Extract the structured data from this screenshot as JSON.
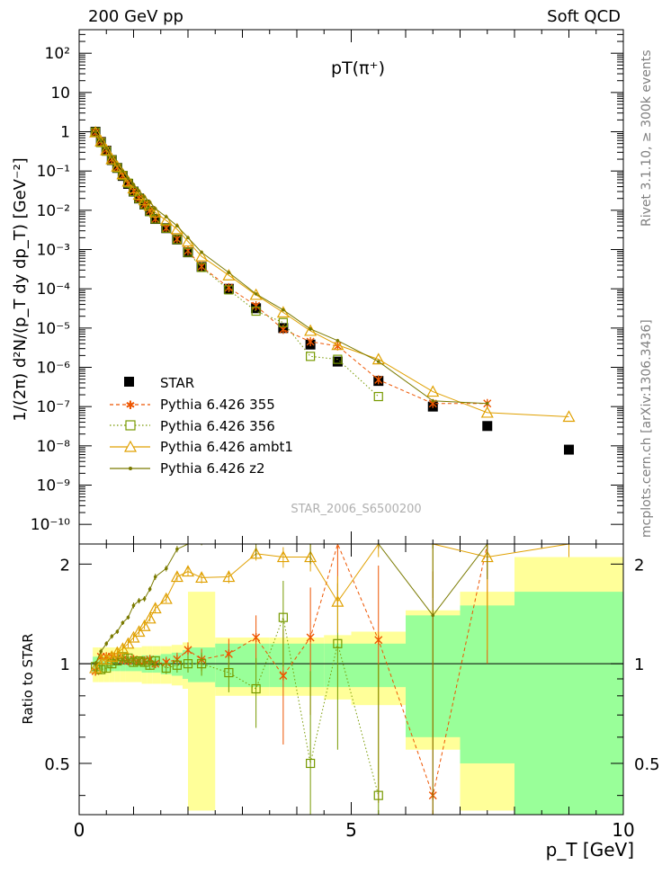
{
  "header": {
    "left": "200 GeV pp",
    "right": "Soft QCD",
    "title": "pT(π⁺)",
    "watermark": "STAR_2006_S6500200",
    "side_top": "Rivet 3.1.10, ≥ 300k events",
    "side_bottom": "mcplots.cern.ch [arXiv:1306.3436]"
  },
  "axes": {
    "ylabel_main": "1/(2π) d²N/(p_T dy dp_T) [GeV⁻²]",
    "ylabel_ratio": "Ratio to STAR",
    "xlabel": "p_T [GeV]",
    "x_ticks": [
      "0",
      "5",
      "10"
    ],
    "y_main_ticks": [
      "10²",
      "10",
      "1",
      "10⁻¹",
      "10⁻²",
      "10⁻³",
      "10⁻⁴",
      "10⁻⁵",
      "10⁻⁶",
      "10⁻⁷",
      "10⁻⁸",
      "10⁻⁹",
      "10⁻¹⁰"
    ],
    "y_ratio_ticks": [
      "2",
      "1",
      "0.5"
    ]
  },
  "legend": {
    "data": "STAR",
    "s355": "Pythia 6.426 355",
    "s356": "Pythia 6.426 356",
    "ambt1": "Pythia 6.426 ambt1",
    "z2": "Pythia 6.426 z2"
  },
  "colors": {
    "data": "#000000",
    "s355": "#ee5500",
    "s356": "#779900",
    "ambt1": "#e0a000",
    "z2": "#7a7a00",
    "band_outer": "#ffff99",
    "band_inner": "#99ff99"
  },
  "chart_data": {
    "type": "scatter",
    "title": "pT(π⁺)",
    "xlabel": "p_T [GeV]",
    "ylabel": "1/(2π) d²N/(p_T dy dp_T) [GeV⁻²]",
    "xlim": [
      0,
      10
    ],
    "ylim_log10": [
      -10.5,
      2.6
    ],
    "ratio_ylim": [
      0.35,
      2.3
    ],
    "x": [
      0.3,
      0.4,
      0.5,
      0.6,
      0.7,
      0.8,
      0.9,
      1.0,
      1.1,
      1.2,
      1.3,
      1.4,
      1.6,
      1.8,
      2.0,
      2.25,
      2.75,
      3.25,
      3.75,
      4.25,
      4.75,
      5.5,
      6.5,
      7.5,
      9.0
    ],
    "bins": [
      [
        0.25,
        0.35
      ],
      [
        0.35,
        0.45
      ],
      [
        0.45,
        0.55
      ],
      [
        0.55,
        0.65
      ],
      [
        0.65,
        0.75
      ],
      [
        0.75,
        0.85
      ],
      [
        0.85,
        0.95
      ],
      [
        0.95,
        1.05
      ],
      [
        1.05,
        1.15
      ],
      [
        1.15,
        1.25
      ],
      [
        1.25,
        1.35
      ],
      [
        1.35,
        1.5
      ],
      [
        1.5,
        1.7
      ],
      [
        1.7,
        1.9
      ],
      [
        1.9,
        2.0
      ],
      [
        2.0,
        2.5
      ],
      [
        2.5,
        3.0
      ],
      [
        3.0,
        3.5
      ],
      [
        3.5,
        4.0
      ],
      [
        4.0,
        4.5
      ],
      [
        4.5,
        5.0
      ],
      [
        5.0,
        6.0
      ],
      [
        6.0,
        7.0
      ],
      [
        7.0,
        8.0
      ],
      [
        8.0,
        10.0
      ]
    ],
    "ratio_band_outer": [
      0.12,
      0.12,
      0.12,
      0.12,
      0.12,
      0.12,
      0.12,
      0.12,
      0.12,
      0.13,
      0.13,
      0.13,
      0.13,
      0.14,
      0.16,
      0.65,
      0.2,
      0.2,
      0.2,
      0.2,
      0.22,
      0.25,
      0.45,
      0.65,
      1.1
    ],
    "ratio_band_inner": [
      0.05,
      0.05,
      0.05,
      0.05,
      0.05,
      0.05,
      0.05,
      0.05,
      0.05,
      0.06,
      0.06,
      0.06,
      0.07,
      0.08,
      0.1,
      0.12,
      0.15,
      0.15,
      0.15,
      0.15,
      0.15,
      0.15,
      0.4,
      0.5,
      0.65
    ],
    "series": [
      {
        "key": "data",
        "name": "STAR",
        "marker": "filled-square",
        "values": [
          1.0,
          0.55,
          0.33,
          0.19,
          0.12,
          0.075,
          0.047,
          0.03,
          0.02,
          0.014,
          0.0095,
          0.006,
          0.0035,
          0.0018,
          0.00085,
          0.00036,
          0.0001,
          3.2e-05,
          1e-05,
          3.8e-06,
          1.4e-06,
          4.5e-07,
          1e-07,
          3.2e-08,
          8e-09
        ]
      },
      {
        "key": "s355",
        "name": "Pythia 6.426 355",
        "marker": "star",
        "style": "dashed",
        "values": [
          0.95,
          0.58,
          0.35,
          0.2,
          0.125,
          0.077,
          0.048,
          0.031,
          0.02,
          0.014,
          0.0098,
          0.006,
          0.0035,
          0.00185,
          0.00093,
          0.00037,
          0.000107,
          3.7e-05,
          9.2e-06,
          4.5e-06,
          3.5e-06,
          4.8e-07,
          1.2e-07,
          1.2e-07
        ],
        "ratio": [
          0.95,
          1.05,
          1.05,
          1.05,
          1.04,
          1.03,
          1.02,
          1.03,
          1.02,
          1.02,
          1.03,
          1.0,
          1.01,
          1.03,
          1.1,
          1.03,
          1.07,
          1.2,
          0.92,
          1.2,
          2.5,
          1.18,
          0.4,
          4.0
        ],
        "ratio_err": [
          0.03,
          0.03,
          0.03,
          0.03,
          0.03,
          0.03,
          0.03,
          0.03,
          0.03,
          0.03,
          0.03,
          0.03,
          0.04,
          0.05,
          0.06,
          0.08,
          0.12,
          0.2,
          0.35,
          0.5,
          1.0,
          0.8,
          1.5,
          3.0
        ]
      },
      {
        "key": "s356",
        "name": "Pythia 6.426 356",
        "marker": "open-square",
        "style": "dotted",
        "values": [
          0.98,
          0.53,
          0.32,
          0.19,
          0.12,
          0.077,
          0.049,
          0.03,
          0.02,
          0.014,
          0.0093,
          0.006,
          0.0035,
          0.0018,
          0.00085,
          0.00035,
          9.4e-05,
          2.7e-05,
          1.38e-05,
          1.9e-06,
          1.6e-06,
          1.8e-07
        ],
        "ratio": [
          0.98,
          0.96,
          0.97,
          1.0,
          1.02,
          1.05,
          1.04,
          1.01,
          1.02,
          1.01,
          0.99,
          1.02,
          0.97,
          0.99,
          1.0,
          1.0,
          0.94,
          0.84,
          1.38,
          0.5,
          1.15,
          0.4
        ],
        "ratio_err": [
          0.03,
          0.03,
          0.03,
          0.03,
          0.03,
          0.03,
          0.03,
          0.03,
          0.03,
          0.03,
          0.03,
          0.03,
          0.04,
          0.05,
          0.06,
          0.08,
          0.12,
          0.2,
          0.4,
          0.45,
          0.6,
          0.6
        ]
      },
      {
        "key": "ambt1",
        "name": "Pythia 6.426 ambt1",
        "marker": "open-triangle",
        "style": "solid",
        "values": [
          0.97,
          0.57,
          0.34,
          0.2,
          0.13,
          0.083,
          0.054,
          0.036,
          0.025,
          0.018,
          0.013,
          0.0088,
          0.0055,
          0.0033,
          0.0016,
          0.00067,
          0.00022,
          7e-05,
          2.5e-05,
          8.5e-06,
          3.7e-06,
          1.6e-06,
          2.4e-07,
          7e-08,
          5.5e-08
        ],
        "ratio": [
          0.97,
          1.03,
          1.03,
          1.05,
          1.08,
          1.11,
          1.15,
          1.2,
          1.25,
          1.3,
          1.37,
          1.47,
          1.57,
          1.83,
          1.9,
          1.82,
          1.83,
          2.15,
          2.1,
          2.1,
          1.54,
          2.7,
          2.38,
          2.1,
          2.6
        ],
        "ratio_err": [
          0.03,
          0.03,
          0.03,
          0.03,
          0.03,
          0.03,
          0.03,
          0.03,
          0.03,
          0.03,
          0.03,
          0.04,
          0.04,
          0.05,
          0.06,
          0.07,
          0.08,
          0.1,
          0.15,
          0.2,
          0.3,
          0.6,
          0.8,
          1.0,
          0.5
        ]
      },
      {
        "key": "z2",
        "name": "Pythia 6.426 z2",
        "marker": "dot",
        "style": "solid",
        "values": [
          1.0,
          0.6,
          0.38,
          0.23,
          0.15,
          0.1,
          0.065,
          0.045,
          0.031,
          0.022,
          0.016,
          0.011,
          0.0068,
          0.004,
          0.002,
          0.00085,
          0.00026,
          7.4e-05,
          2.9e-05,
          9.5e-06,
          4.8e-06,
          1.4e-06,
          1.4e-07,
          1.2e-07
        ],
        "ratio": [
          1.0,
          1.09,
          1.15,
          1.21,
          1.25,
          1.33,
          1.38,
          1.5,
          1.55,
          1.57,
          1.68,
          1.83,
          1.94,
          2.22,
          2.35,
          2.36,
          2.6,
          2.3,
          2.9,
          2.5,
          3.4,
          3.1,
          1.4,
          3.8
        ],
        "ratio_err": [
          0.02,
          0.02,
          0.02,
          0.02,
          0.02,
          0.02,
          0.02,
          0.03,
          0.03,
          0.03,
          0.03,
          0.04,
          0.04,
          0.05,
          0.06,
          0.08,
          0.1,
          0.2,
          0.3,
          0.5,
          0.6,
          0.8,
          1.4,
          2.0
        ]
      }
    ]
  }
}
